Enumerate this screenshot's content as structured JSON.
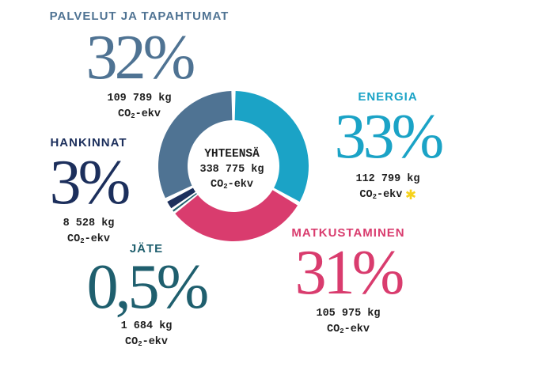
{
  "chart_data": {
    "type": "pie",
    "center": {
      "title": "YHTEENSÄ",
      "amount": "338 775 kg",
      "unit_main": "CO",
      "unit_sub": "2",
      "unit_suffix": "-ekv"
    },
    "slices": [
      {
        "label": "ENERGIA",
        "percent_label": "33%",
        "value_kg": 112799,
        "amount": "112 799 kg",
        "unit_main": "CO",
        "unit_sub": "2",
        "unit_suffix": "-ekv",
        "color": "#1ba3c6"
      },
      {
        "label": "MATKUSTAMINEN",
        "percent_label": "31%",
        "value_kg": 105975,
        "amount": "105 975 kg",
        "unit_main": "CO",
        "unit_sub": "2",
        "unit_suffix": "-ekv",
        "color": "#d93c6e"
      },
      {
        "label": "JÄTE",
        "percent_label": "0,5%",
        "value_kg": 1684,
        "amount": "1 684 kg",
        "unit_main": "CO",
        "unit_sub": "2",
        "unit_suffix": "-ekv",
        "color": "#1f5f6e"
      },
      {
        "label": "HANKINNAT",
        "percent_label": "3%",
        "value_kg": 8528,
        "amount": "8 528 kg",
        "unit_main": "CO",
        "unit_sub": "2",
        "unit_suffix": "-ekv",
        "color": "#1c2f5c"
      },
      {
        "label": "PALVELUT JA TAPAHTUMAT",
        "percent_label": "32%",
        "value_kg": 109789,
        "amount": "109 789 kg",
        "unit_main": "CO",
        "unit_sub": "2",
        "unit_suffix": "-ekv",
        "color": "#4f7393"
      }
    ],
    "label_colors": {
      "ENERGIA": "#1ba3c6",
      "MATKUSTAMINEN": "#d93c6e",
      "JÄTE": "#1f5f6e",
      "HANKINNAT": "#1c2f5c",
      "PALVELUT JA TAPAHTUMAT": "#4f7393"
    },
    "marker_icon": "asterisk-icon",
    "marker_color": "#f6d21b"
  }
}
